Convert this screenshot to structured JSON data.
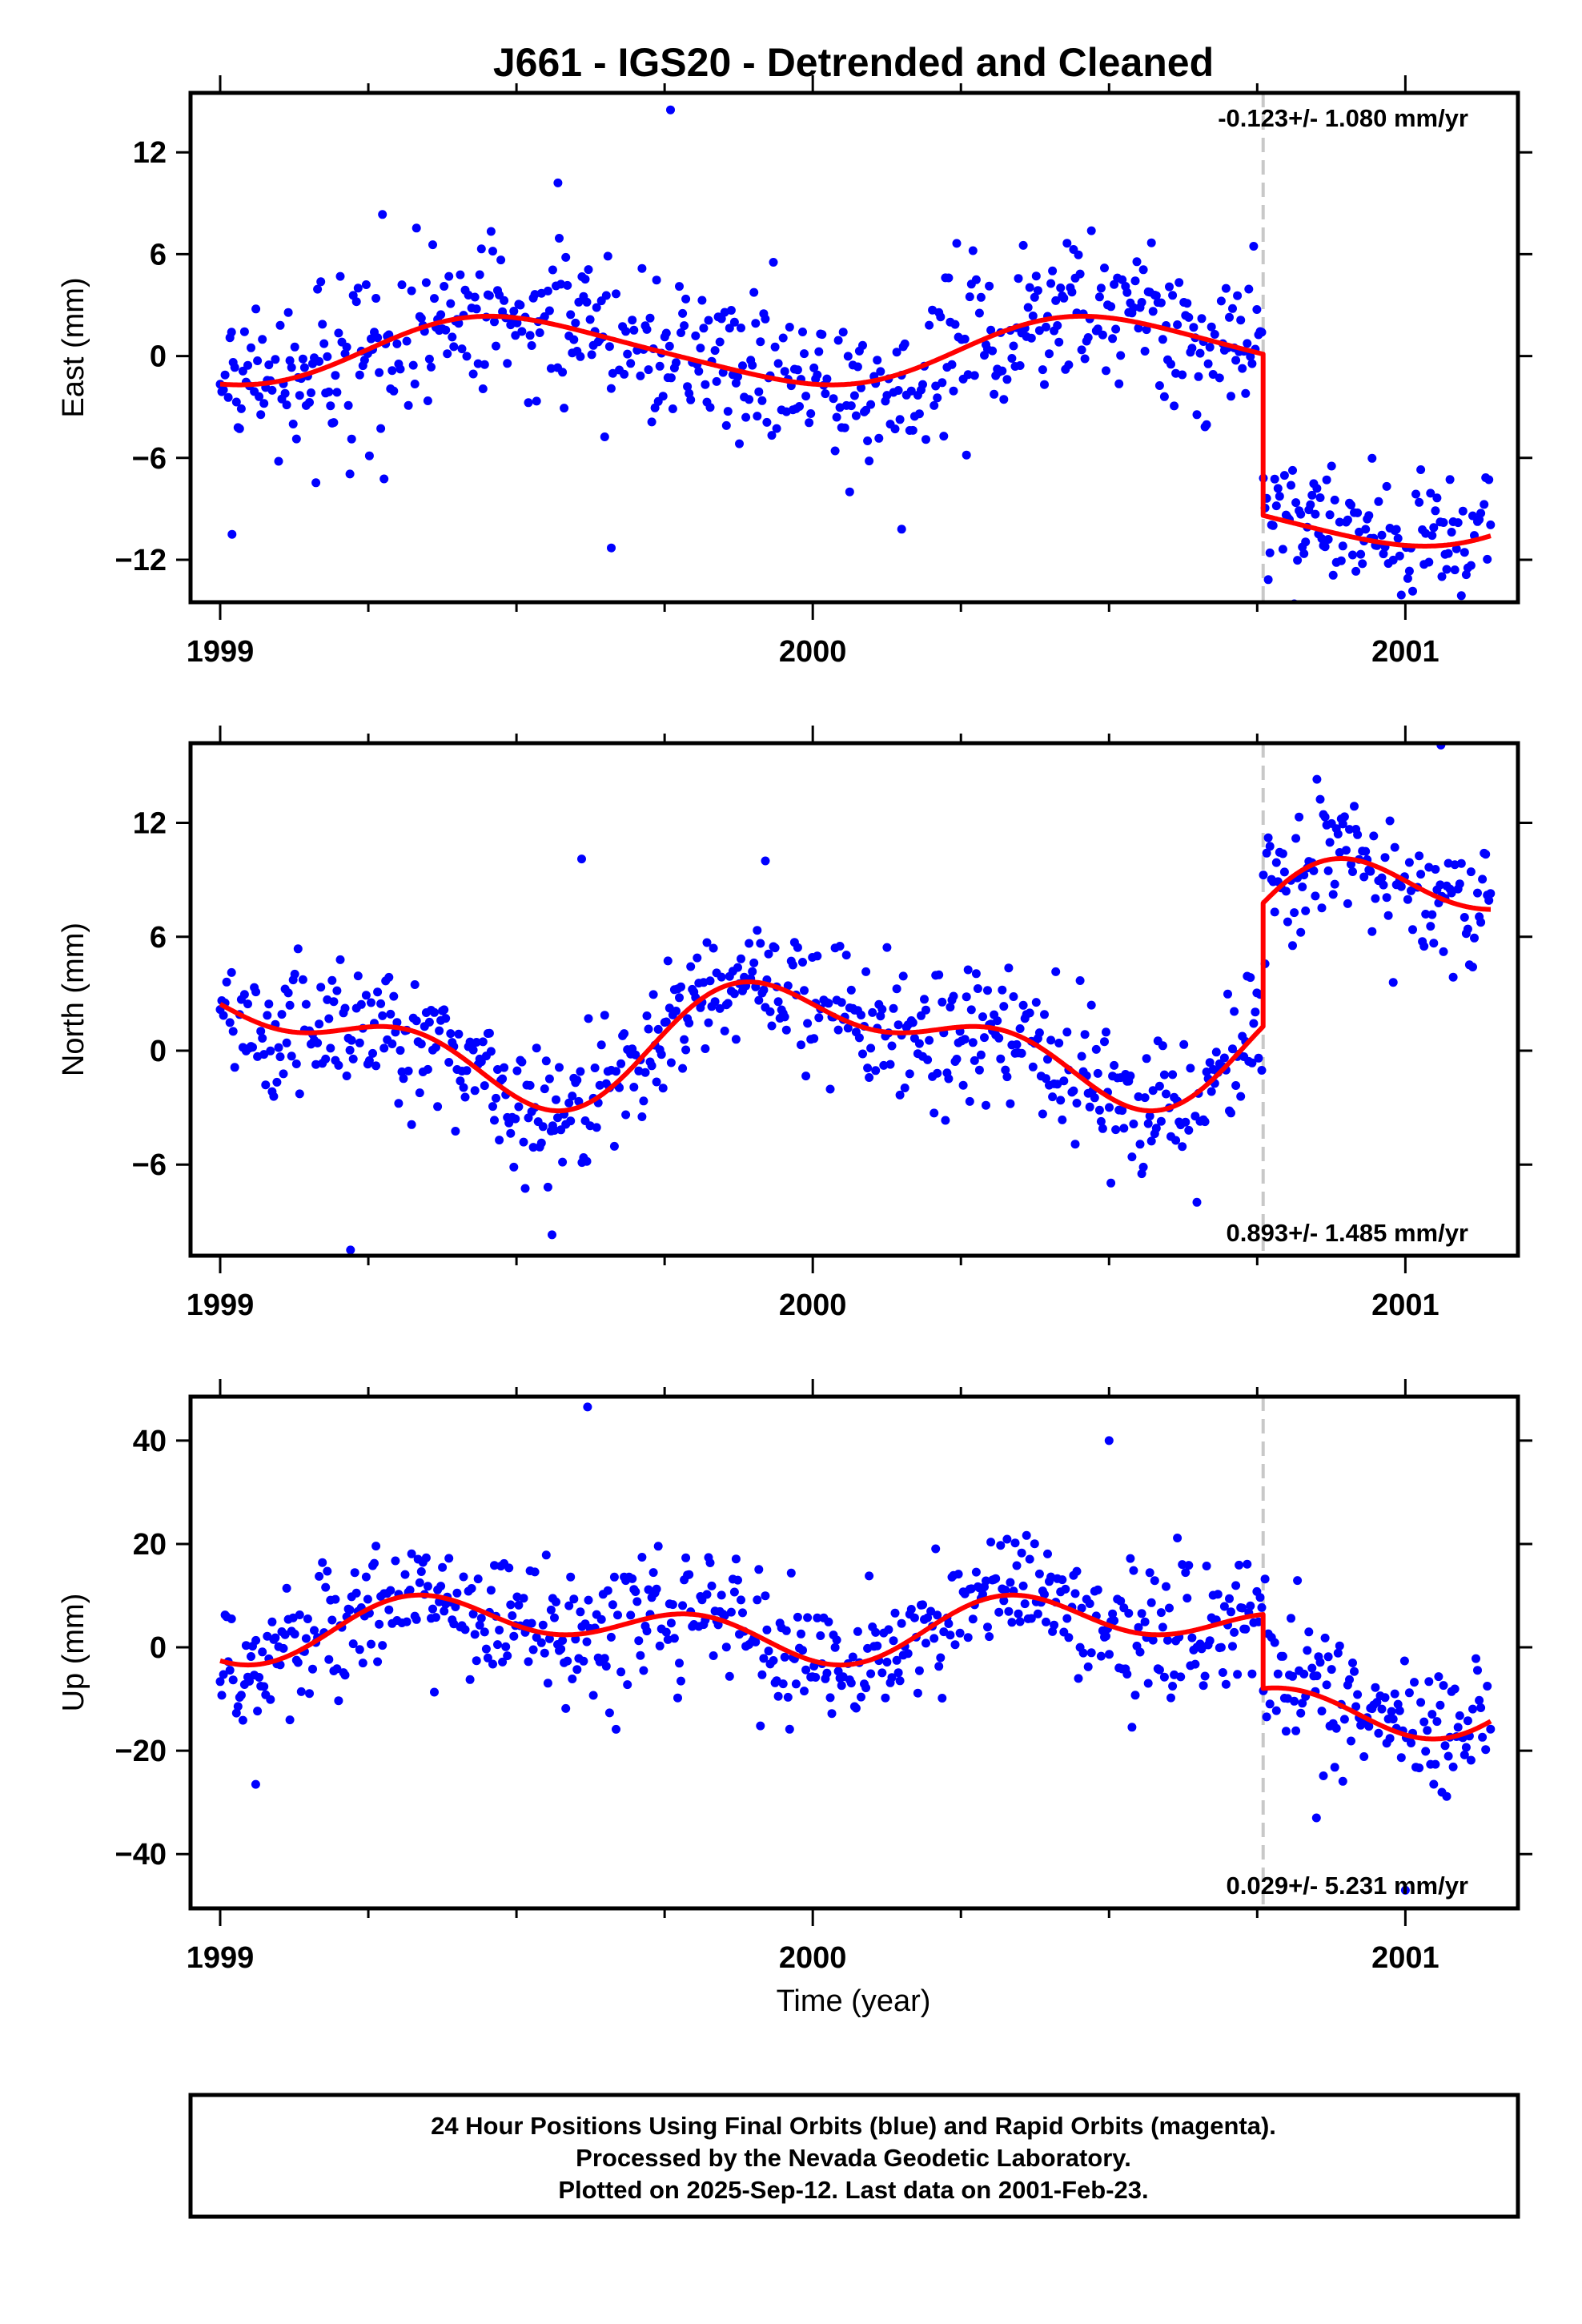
{
  "chart_data": {
    "type": "scatter",
    "title": "J661 - IGS20 - Detrended and Cleaned",
    "xlabel": "Time (year)",
    "xlim": [
      1998.95,
      2001.19
    ],
    "x_ticks": [
      "1999",
      "2000",
      "2001"
    ],
    "offset_epoch": 2000.76,
    "data_end": 2001.145,
    "colors": {
      "points": "#0000ff",
      "model": "#ff0000",
      "offset_line": "#c8c8c8",
      "frame": "#000000"
    },
    "panels": [
      {
        "name": "East",
        "ylabel": "East (mm)",
        "ylim": [
          -14.5,
          15.5
        ],
        "y_ticks": [
          12,
          6,
          0,
          -6,
          -12
        ],
        "rate_label": "-0.123+/- 1.080 mm/yr",
        "rate_position": "top-right",
        "model": {
          "pre_offset": 0.3,
          "post_offset": -9.2,
          "annual_sin": 0.1,
          "annual_cos": -1.95,
          "semiannual_sin": -0.27,
          "semiannual_cos": 0.0,
          "trend_per_year": 0.0
        },
        "noise_sd": 2.3,
        "outliers": [
          [
            1999.76,
            14.5
          ],
          [
            1999.57,
            10.2
          ],
          [
            1999.66,
            -11.3
          ],
          [
            1999.02,
            -10.5
          ],
          [
            2001.01,
            -16.2
          ],
          [
            2000.15,
            -10.2
          ]
        ]
      },
      {
        "name": "North",
        "ylabel": "North (mm)",
        "ylim": [
          -10.8,
          16.2
        ],
        "y_ticks": [
          12,
          6,
          0,
          -6
        ],
        "rate_label": "0.893+/- 1.485 mm/yr",
        "rate_position": "bottom-right",
        "model": {
          "pre_offset": 0.55,
          "post_offset": 7.05,
          "annual_sin": 0.15,
          "annual_cos": 2.45,
          "semiannual_sin": -1.41,
          "semiannual_cos": -0.55,
          "trend_per_year": 0.0
        },
        "noise_sd": 1.8,
        "outliers": [
          [
            1999.22,
            -10.5
          ],
          [
            1999.61,
            10.1
          ],
          [
            2001.06,
            16.1
          ],
          [
            1999.92,
            10.0
          ],
          [
            1999.56,
            -9.7
          ]
        ]
      },
      {
        "name": "Up",
        "ylabel": "Up (mm)",
        "ylim": [
          -50.5,
          48.5
        ],
        "y_ticks": [
          40,
          20,
          0,
          -20,
          -40
        ],
        "rate_label": "0.029+/- 5.231 mm/yr",
        "rate_position": "bottom-right",
        "model": {
          "pre_offset": 3.82,
          "post_offset": -10.5,
          "annual_sin": 0.6,
          "annual_cos": -3.42,
          "semiannual_sin": -2.95,
          "semiannual_cos": -3.0,
          "trend_per_year": 0.0
        },
        "noise_sd": 6.5,
        "outliers": [
          [
            1999.62,
            46.5
          ],
          [
            2000.5,
            40.0
          ],
          [
            1999.06,
            -26.5
          ],
          [
            2001.0,
            -47.0
          ],
          [
            2000.85,
            -33.0
          ]
        ]
      }
    ]
  },
  "footer": {
    "line1": "24 Hour Positions Using Final Orbits (blue) and Rapid Orbits (magenta).",
    "line2": "Processed by the Nevada Geodetic Laboratory.",
    "line3": "Plotted on 2025-Sep-12. Last data on 2001-Feb-23."
  }
}
